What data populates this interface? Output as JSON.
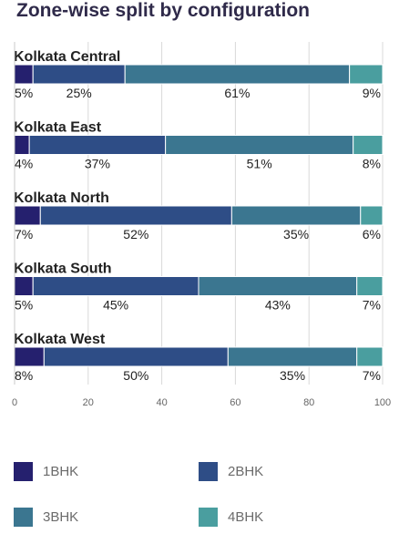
{
  "title": "Zone-wise split by configuration",
  "chart_data": {
    "type": "bar",
    "stacked": true,
    "orientation": "horizontal",
    "categories": [
      "Kolkata Central",
      "Kolkata East",
      "Kolkata North",
      "Kolkata South",
      "Kolkata West"
    ],
    "series": [
      {
        "name": "1BHK",
        "color": "#25206e",
        "values": [
          5,
          4,
          7,
          5,
          8
        ],
        "labels": [
          "5%",
          "4%",
          "7%",
          "5%",
          "8%"
        ]
      },
      {
        "name": "2BHK",
        "color": "#2e4d86",
        "values": [
          25,
          37,
          52,
          45,
          50
        ],
        "labels": [
          "25%",
          "37%",
          "52%",
          "45%",
          "50%"
        ]
      },
      {
        "name": "3BHK",
        "color": "#3b7690",
        "values": [
          61,
          51,
          35,
          43,
          35
        ],
        "labels": [
          "61%",
          "51%",
          "35%",
          "43%",
          "35%"
        ]
      },
      {
        "name": "4BHK",
        "color": "#4a9e9f",
        "values": [
          9,
          8,
          6,
          7,
          7
        ],
        "labels": [
          "9%",
          "8%",
          "6%",
          "7%",
          "7%"
        ]
      }
    ],
    "xlim": [
      0,
      100
    ],
    "xticks": [
      "0",
      "20",
      "40",
      "60",
      "80",
      "100"
    ],
    "grid": true,
    "legend_position": "bottom"
  }
}
